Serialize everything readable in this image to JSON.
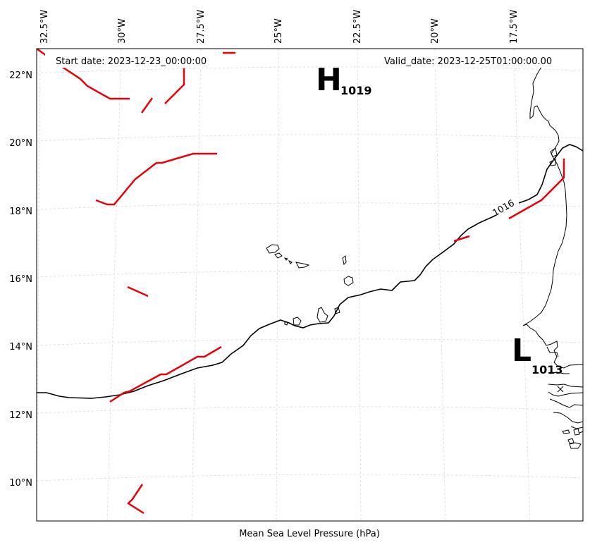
{
  "map": {
    "start_date_label": "Start date: 2023-12-23_00:00:00",
    "valid_date_label": "Valid_date: 2023-12-25T01:00:00.00",
    "caption": "Mean Sea Level Pressure (hPa)",
    "longitude_ticks": [
      "32.5°W",
      "30°W",
      "27.5°W",
      "25°W",
      "22.5°W",
      "20°W",
      "17.5°W"
    ],
    "latitude_ticks": [
      "22°N",
      "20°N",
      "18°N",
      "16°N",
      "14°N",
      "12°N",
      "10°N"
    ],
    "pressure_centers": [
      {
        "type": "high",
        "letter": "H",
        "value": "1019"
      },
      {
        "type": "low",
        "letter": "L",
        "value": "1013"
      }
    ],
    "isobar_labels": [
      "1016"
    ],
    "colors": {
      "front": "#e8000b",
      "isobar": "#000000",
      "grid": "#d8d8d8"
    }
  }
}
